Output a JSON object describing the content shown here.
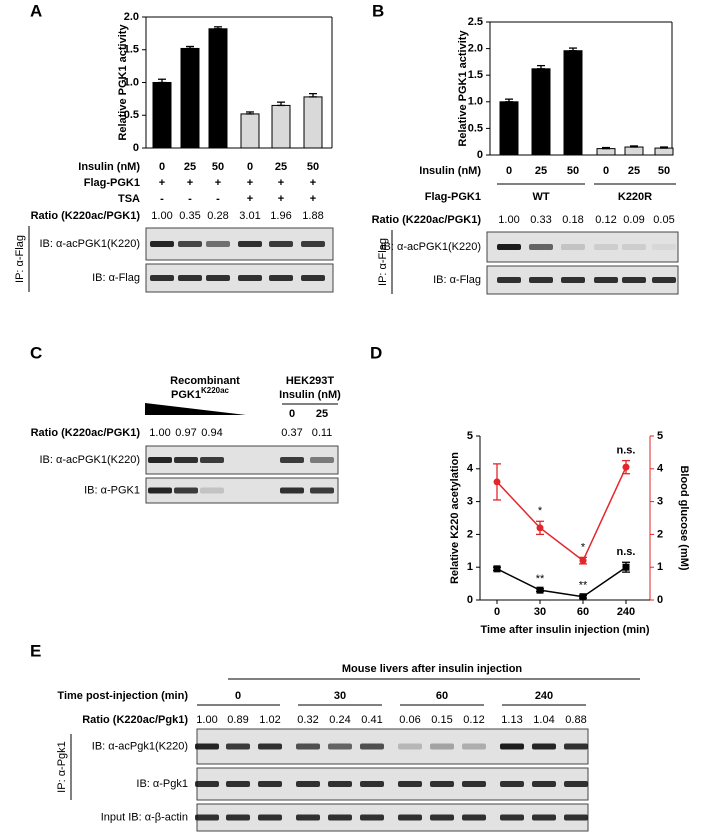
{
  "panel_labels": [
    "A",
    "B",
    "C",
    "D",
    "E"
  ],
  "chart_data": [
    {
      "type": "bar",
      "ylabel": "Relative PGK1 activity",
      "values": [
        1.0,
        1.52,
        1.82,
        0.52,
        0.65,
        0.78
      ],
      "errors": [
        0.05,
        0.03,
        0.03,
        0.03,
        0.05,
        0.05
      ],
      "colors": [
        "#000000",
        "#000000",
        "#000000",
        "#d9d9d9",
        "#d9d9d9",
        "#d9d9d9"
      ],
      "ylim": [
        0,
        2
      ],
      "yticks": [
        0,
        0.5,
        {
          "value": 1,
          "label": "1.0"
        },
        1.5,
        {
          "value": 2,
          "label": "2.0"
        }
      ]
    },
    {
      "type": "bar",
      "ylabel": "Relative PGK1 activity",
      "values": [
        1.0,
        1.62,
        1.96,
        0.12,
        0.15,
        0.13
      ],
      "errors": [
        0.05,
        0.06,
        0.05,
        0.02,
        0.02,
        0.02
      ],
      "colors": [
        "#000000",
        "#000000",
        "#000000",
        "#d9d9d9",
        "#d9d9d9",
        "#d9d9d9"
      ],
      "ylim": [
        0,
        2.5
      ],
      "yticks": [
        0,
        0.5,
        {
          "value": 1,
          "label": "1.0"
        },
        1.5,
        {
          "value": 2,
          "label": "2.0"
        },
        2.5
      ]
    },
    {
      "type": "line",
      "xlabel": "Time after insulin injection (min)",
      "ylabel": "Relative K220 acetylation",
      "y2label": "Blood glucose (mM)",
      "categories": [
        "0",
        "30",
        "60",
        "240"
      ],
      "ylim": [
        0,
        5
      ],
      "yticks": [
        0,
        1,
        2,
        3,
        4,
        5
      ],
      "y2lim": [
        0,
        5
      ],
      "y2ticks": [
        0,
        1,
        2,
        3,
        4,
        5
      ],
      "series": [
        {
          "color": "#000000",
          "marker": "square",
          "values": [
            0.95,
            0.3,
            0.1,
            1.0
          ],
          "errors": [
            0.05,
            0.04,
            0.04,
            0.15
          ],
          "annotations": [
            null,
            "**",
            "**",
            "n.s."
          ]
        },
        {
          "color": "#e3262b",
          "marker": "circle",
          "axis": "y2",
          "values": [
            3.6,
            2.2,
            1.2,
            4.05
          ],
          "errors": [
            0.55,
            0.2,
            0.1,
            0.2
          ],
          "annotations": [
            null,
            "*",
            "*",
            "n.s."
          ]
        }
      ]
    }
  ],
  "panel_a": {
    "rows": [
      {
        "label": "Insulin (nM)",
        "cells": [
          "0",
          "25",
          "50",
          "0",
          "25",
          "50"
        ]
      },
      {
        "label": "Flag-PGK1",
        "cells": [
          "+",
          "+",
          "+",
          "+",
          "+",
          "+"
        ]
      },
      {
        "label": "TSA",
        "cells": [
          "-",
          "-",
          "-",
          "+",
          "+",
          "+"
        ]
      },
      {
        "label": "Ratio (K220ac/PGK1)",
        "cells": [
          "1.00",
          "0.35",
          "0.28",
          "3.01",
          "1.96",
          "1.88"
        ]
      }
    ],
    "blots": [
      "IB: α-acPGK1(K220)",
      "IB: α-Flag"
    ],
    "ip": "IP: α-Flag"
  },
  "panel_b": {
    "rows": [
      {
        "label": "Insulin (nM)",
        "cells": [
          "0",
          "25",
          "50",
          "0",
          "25",
          "50"
        ]
      },
      {
        "label": "Flag-PGK1",
        "groups": [
          "WT",
          "K220R"
        ]
      },
      {
        "label": "Ratio (K220ac/PGK1)",
        "cells": [
          "1.00",
          "0.33",
          "0.18",
          "0.12",
          "0.09",
          "0.05"
        ]
      }
    ],
    "blots": [
      "IB: α-acPGK1(K220)",
      "IB: α-Flag"
    ],
    "ip": "IP: α-Flag"
  },
  "panel_c": {
    "recombinant": "Recombinant",
    "protein": "PGK1",
    "superscript": "K220ac",
    "cell_line": "HEK293T",
    "insulin": "Insulin (nM)",
    "insulin_doses": [
      "0",
      "25"
    ],
    "ratio_label": "Ratio (K220ac/PGK1)",
    "ratios": [
      "1.00",
      "0.97",
      "0.94",
      "0.37",
      "0.11"
    ],
    "blots": [
      "IB: α-acPGK1(K220)",
      "IB: α-PGK1"
    ]
  },
  "panel_e": {
    "heading": "Mouse livers after insulin injection",
    "time_label": "Time post-injection (min)",
    "times": [
      "0",
      "30",
      "60",
      "240"
    ],
    "ratio_label": "Ratio (K220ac/Pgk1)",
    "ratios": [
      "1.00",
      "0.89",
      "1.02",
      "0.32",
      "0.24",
      "0.41",
      "0.06",
      "0.15",
      "0.12",
      "1.13",
      "1.04",
      "0.88"
    ],
    "blots": [
      "IB: α-acPgk1(K220)",
      "IB: α-Pgk1",
      "Input IB: α-β-actin"
    ],
    "ip": "IP: α-Pgk1"
  }
}
